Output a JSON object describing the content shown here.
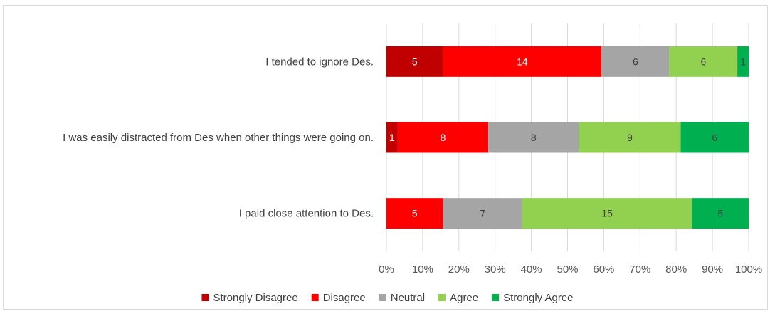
{
  "chart_data": {
    "type": "bar",
    "orientation": "horizontal",
    "stacked": "100%",
    "categories": [
      "I tended to ignore Des.",
      "I was easily distracted from Des when other things were going on.",
      "I paid close attention to Des."
    ],
    "series": [
      {
        "name": "Strongly Disagree",
        "color": "#c00000",
        "label_color": "#ffffff",
        "values": [
          5,
          1,
          0
        ]
      },
      {
        "name": "Disagree",
        "color": "#ff0000",
        "label_color": "#ffffff",
        "values": [
          14,
          8,
          5
        ]
      },
      {
        "name": "Neutral",
        "color": "#a5a5a5",
        "label_color": "#404040",
        "values": [
          6,
          8,
          7
        ]
      },
      {
        "name": "Agree",
        "color": "#92d050",
        "label_color": "#404040",
        "values": [
          6,
          9,
          15
        ]
      },
      {
        "name": "Strongly Agree",
        "color": "#00b050",
        "label_color": "#404040",
        "values": [
          1,
          6,
          5
        ]
      }
    ],
    "x_ticks": [
      "0%",
      "10%",
      "20%",
      "30%",
      "40%",
      "50%",
      "60%",
      "70%",
      "80%",
      "90%",
      "100%"
    ],
    "xlim": [
      0,
      100
    ],
    "grid": "vertical",
    "legend": "bottom",
    "title": "",
    "xlabel": "",
    "ylabel": ""
  }
}
